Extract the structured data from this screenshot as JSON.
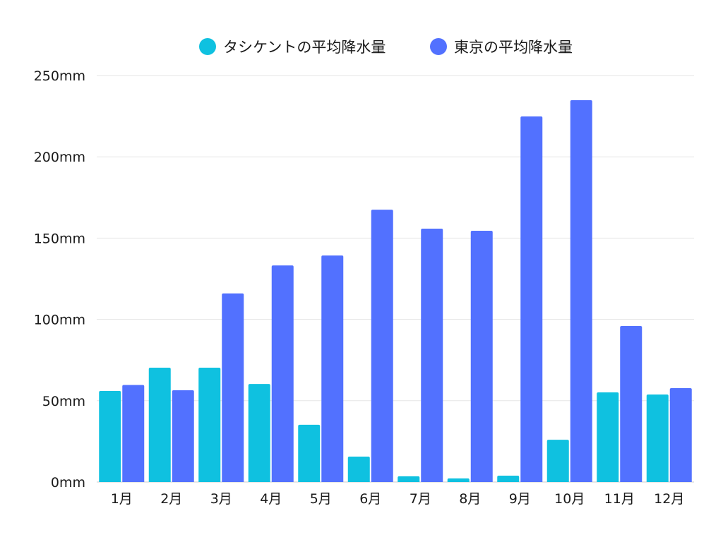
{
  "chart_data": {
    "type": "bar",
    "title": "",
    "xlabel": "",
    "ylabel": "",
    "categories": [
      "1月",
      "2月",
      "3月",
      "4月",
      "5月",
      "6月",
      "7月",
      "8月",
      "9月",
      "10月",
      "11月",
      "12月"
    ],
    "series": [
      {
        "name": "タシケントの平均降水量",
        "color": "#0fc1e0",
        "values": [
          56,
          70.3,
          70.3,
          60.3,
          35.2,
          15.6,
          3.5,
          2.2,
          3.9,
          26,
          55.1,
          53.8
        ]
      },
      {
        "name": "東京の平均降水量",
        "color": "#5271ff",
        "values": [
          59.7,
          56.4,
          116,
          133.2,
          139.3,
          167.5,
          155.8,
          154.5,
          224.8,
          234.8,
          95.9,
          57.7
        ]
      }
    ],
    "ylim": [
      0,
      250
    ],
    "yticks": [
      0,
      50,
      100,
      150,
      200,
      250
    ],
    "ytick_labels": [
      "0mm",
      "50mm",
      "100mm",
      "150mm",
      "200mm",
      "250mm"
    ],
    "grid": true,
    "legend_position": "top-center"
  }
}
